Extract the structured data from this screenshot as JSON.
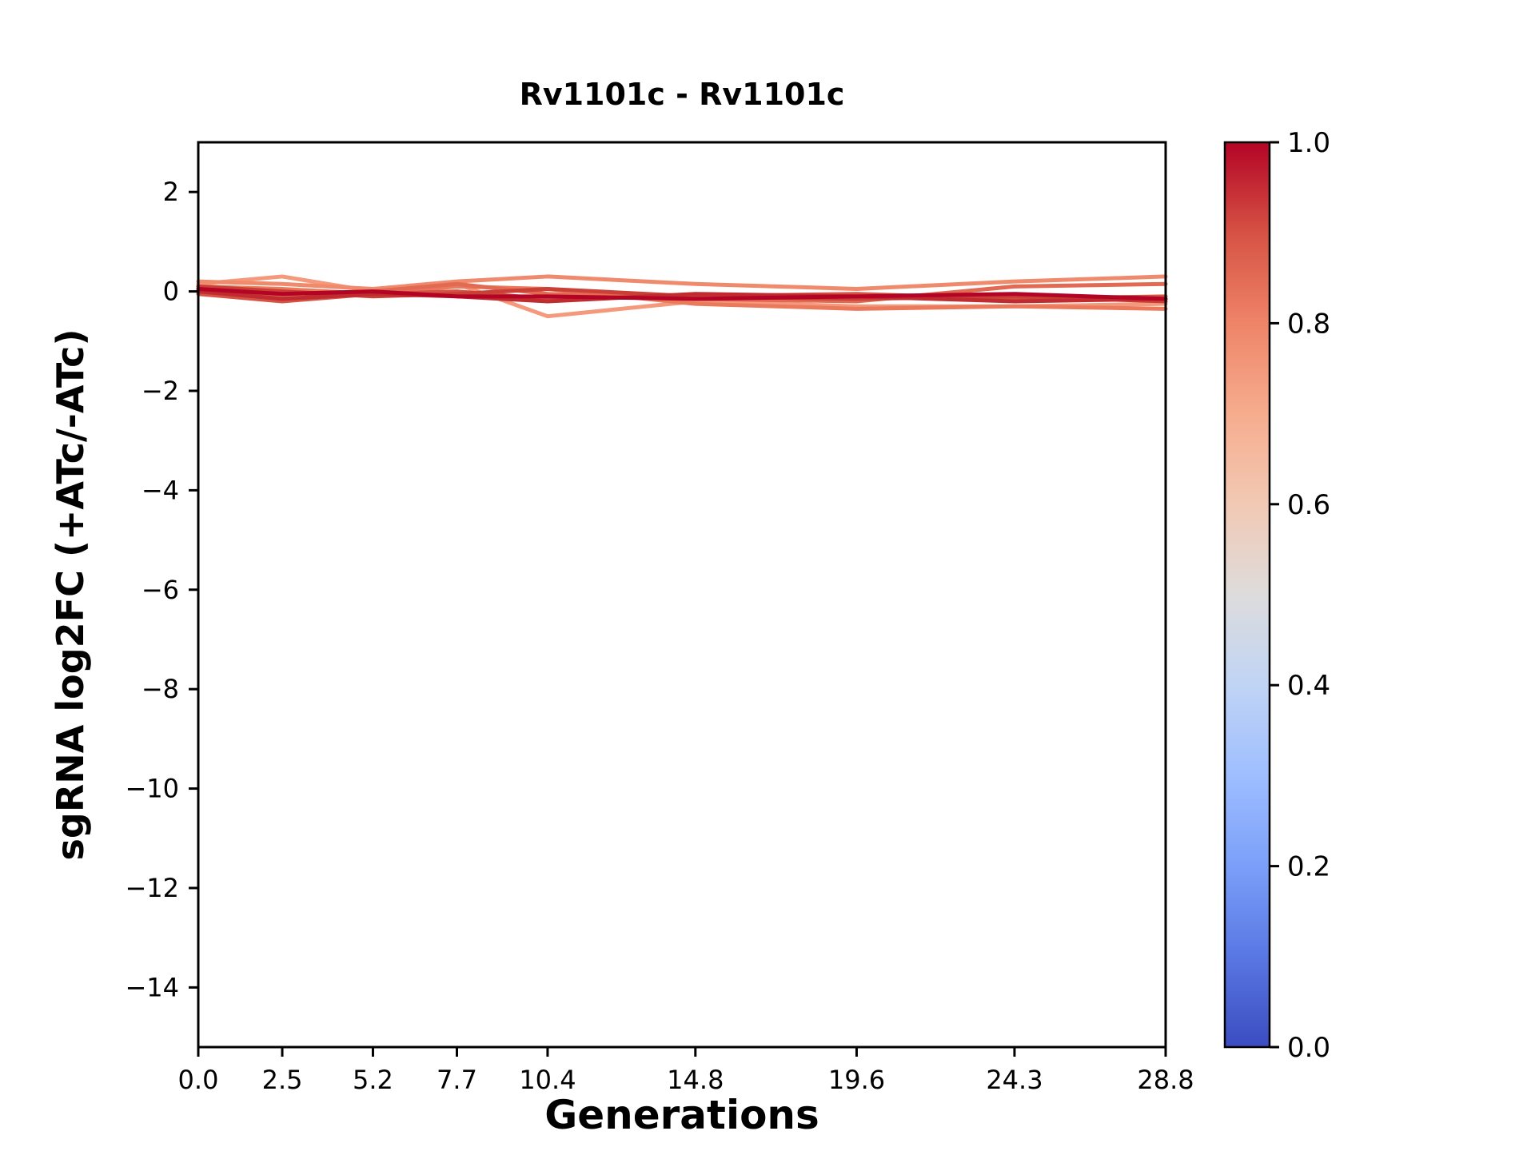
{
  "figure": {
    "background": "#ffffff"
  },
  "chart_data": {
    "type": "line",
    "title": "Rv1101c - Rv1101c",
    "xlabel": "Generations",
    "ylabel": "sgRNA log2FC (+ATc/-ATc)",
    "x": [
      0.0,
      2.5,
      5.2,
      7.7,
      10.4,
      14.8,
      19.6,
      24.3,
      28.8
    ],
    "xtick_labels": [
      "0.0",
      "2.5",
      "5.2",
      "7.7",
      "10.4",
      "14.8",
      "19.6",
      "24.3",
      "28.8"
    ],
    "ytick_values": [
      2,
      0,
      -2,
      -4,
      -6,
      -8,
      -10,
      -12,
      -14
    ],
    "ytick_labels": [
      "2",
      "0",
      "−2",
      "−4",
      "−6",
      "−8",
      "−10",
      "−12",
      "−14"
    ],
    "xlim": [
      0,
      28.8
    ],
    "ylim": [
      -15.2,
      3.0
    ],
    "grid": false,
    "legend": "none",
    "axis_color": "#000000",
    "series": [
      {
        "colormap_value": 0.72,
        "color": "#f4997b",
        "values": [
          0.15,
          0.3,
          0.0,
          0.15,
          -0.5,
          -0.2,
          -0.3,
          -0.3,
          -0.25
        ]
      },
      {
        "colormap_value": 0.78,
        "color": "#f08a6c",
        "values": [
          0.2,
          0.15,
          0.05,
          0.2,
          0.3,
          0.15,
          0.05,
          0.2,
          0.3
        ]
      },
      {
        "colormap_value": 0.82,
        "color": "#ea7a5b",
        "values": [
          0.1,
          0.05,
          -0.05,
          0.1,
          0.05,
          -0.25,
          -0.35,
          -0.3,
          -0.35
        ]
      },
      {
        "colormap_value": 0.86,
        "color": "#e26a52",
        "values": [
          0.05,
          -0.1,
          0.0,
          0.15,
          -0.05,
          -0.15,
          -0.2,
          0.1,
          0.15
        ]
      },
      {
        "colormap_value": 0.9,
        "color": "#d55244",
        "values": [
          -0.05,
          -0.2,
          -0.05,
          0.0,
          -0.15,
          -0.1,
          -0.05,
          -0.15,
          -0.1
        ]
      },
      {
        "colormap_value": 0.93,
        "color": "#ca4037",
        "values": [
          0.1,
          0.0,
          -0.1,
          -0.05,
          0.05,
          -0.1,
          -0.15,
          -0.1,
          -0.2
        ]
      },
      {
        "colormap_value": 0.96,
        "color": "#c02b30",
        "values": [
          0.0,
          -0.15,
          -0.05,
          -0.1,
          -0.2,
          -0.05,
          -0.1,
          -0.2,
          -0.15
        ]
      },
      {
        "colormap_value": 1.0,
        "color": "#b40426",
        "values": [
          0.05,
          -0.05,
          0.0,
          -0.1,
          -0.1,
          -0.15,
          -0.1,
          -0.05,
          -0.15
        ]
      }
    ],
    "colorbar": {
      "min": 0.0,
      "max": 1.0,
      "ticks": [
        {
          "value": 0.0,
          "label": "0.0"
        },
        {
          "value": 0.2,
          "label": "0.2"
        },
        {
          "value": 0.4,
          "label": "0.4"
        },
        {
          "value": 0.6,
          "label": "0.6"
        },
        {
          "value": 0.8,
          "label": "0.8"
        },
        {
          "value": 1.0,
          "label": "1.0"
        }
      ],
      "gradient_stops": [
        {
          "pos": 0.0,
          "color": "#3b4cc0"
        },
        {
          "pos": 0.1,
          "color": "#5977e3"
        },
        {
          "pos": 0.2,
          "color": "#7b9ff9"
        },
        {
          "pos": 0.3,
          "color": "#9ebeff"
        },
        {
          "pos": 0.4,
          "color": "#c0d4f5"
        },
        {
          "pos": 0.5,
          "color": "#dddcdc"
        },
        {
          "pos": 0.6,
          "color": "#f2c9b4"
        },
        {
          "pos": 0.7,
          "color": "#f7ac8e"
        },
        {
          "pos": 0.8,
          "color": "#ee8468"
        },
        {
          "pos": 0.9,
          "color": "#d65244"
        },
        {
          "pos": 1.0,
          "color": "#b40426"
        }
      ]
    }
  }
}
